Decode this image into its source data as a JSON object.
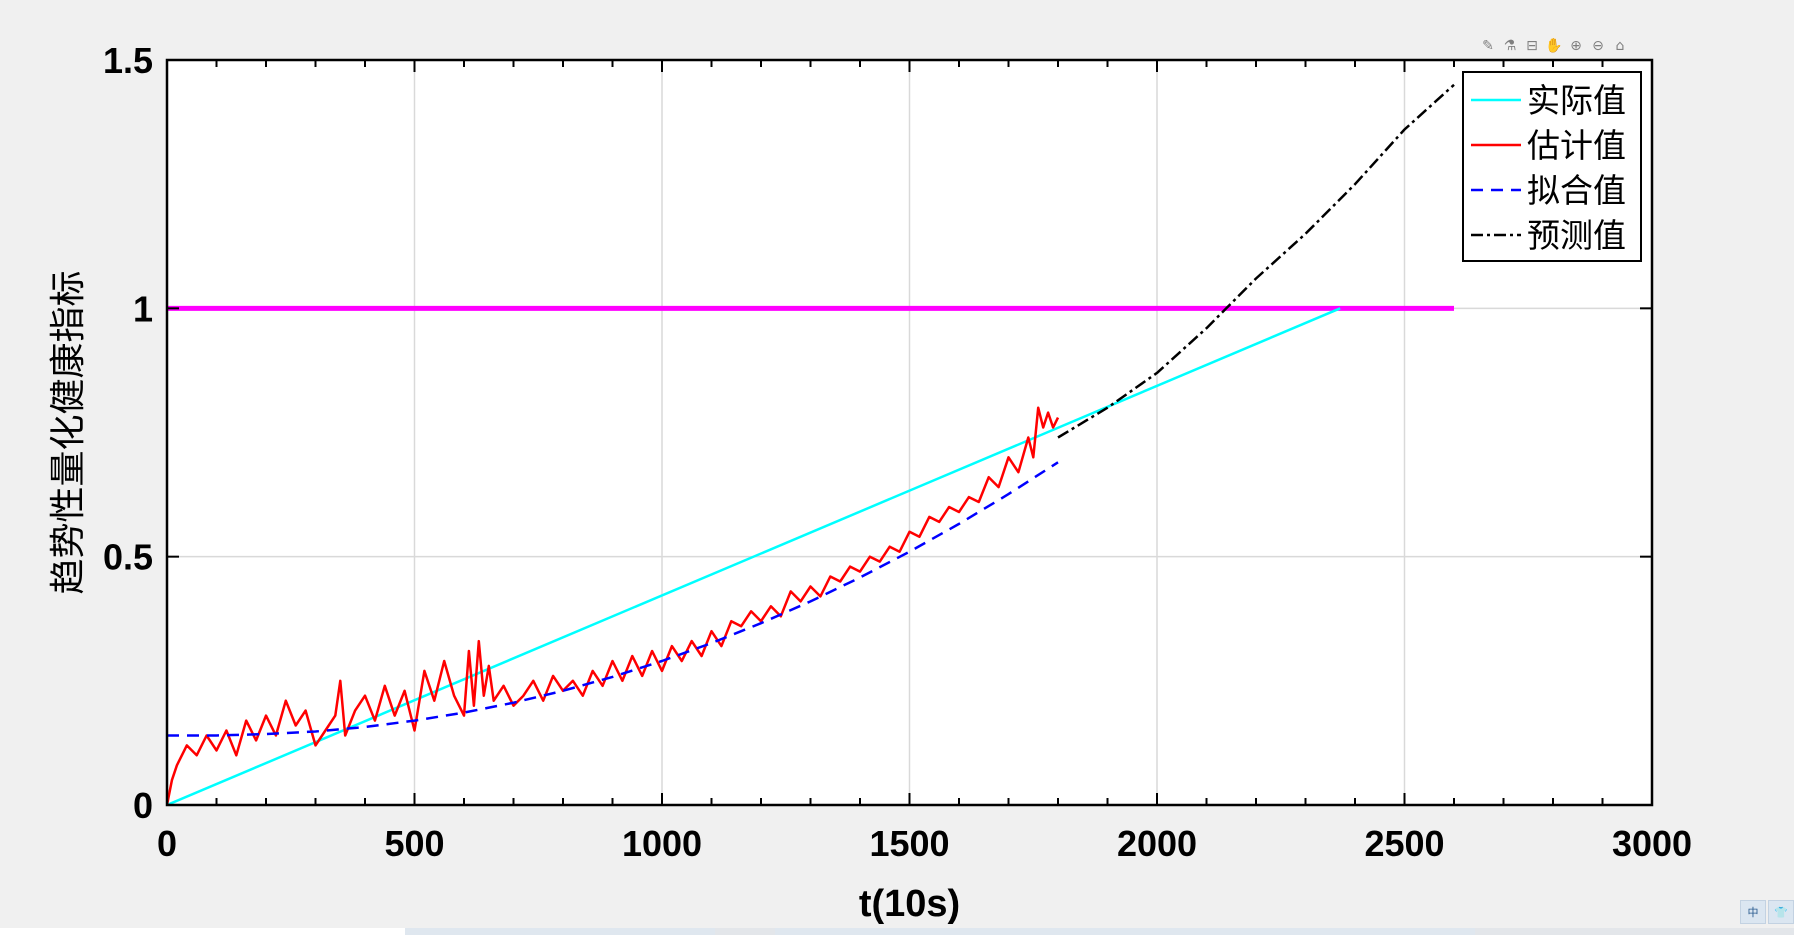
{
  "toolbar": {
    "icons": [
      "brush-icon",
      "data-tip-icon",
      "data-cursor-icon",
      "pan-icon",
      "zoom-in-icon",
      "zoom-out-icon",
      "home-icon"
    ],
    "glyphs": [
      "✎",
      "⚗",
      "⊟",
      "✋",
      "⊕",
      "⊖",
      "⌂"
    ]
  },
  "ime": {
    "label": "中",
    "icon": "shirt-icon",
    "glyph": "👕"
  },
  "colors": {
    "actual": "#00ffff",
    "estimate": "#ff0000",
    "fit": "#0000ff",
    "predict": "#000000",
    "threshold": "#ff00ff",
    "grid": "#d9d9d9"
  },
  "chart_data": {
    "type": "line",
    "title": "",
    "xlabel": "t(10s)",
    "ylabel": "趋势性量化健康指标",
    "xlim": [
      0,
      3000
    ],
    "ylim": [
      0,
      1.5
    ],
    "xticks": [
      0,
      500,
      1000,
      1500,
      2000,
      2500,
      3000
    ],
    "xticklabels": [
      "0",
      "500",
      "1000",
      "1500",
      "2000",
      "2500",
      "3000"
    ],
    "yticks": [
      0,
      0.5,
      1,
      1.5
    ],
    "yticklabels": [
      "0",
      "0.5",
      "1",
      "1.5"
    ],
    "grid": true,
    "legend_position": "top-right",
    "threshold": {
      "y": 1.0,
      "x": [
        0,
        2600
      ]
    },
    "series": [
      {
        "name": "实际值",
        "style": "solid",
        "x": [
          0,
          2370
        ],
        "y": [
          0,
          1.0
        ]
      },
      {
        "name": "估计值",
        "style": "solid",
        "x": [
          0,
          10,
          20,
          40,
          60,
          80,
          100,
          120,
          140,
          160,
          180,
          200,
          220,
          240,
          260,
          280,
          300,
          320,
          340,
          350,
          360,
          380,
          400,
          420,
          440,
          460,
          480,
          500,
          520,
          540,
          560,
          580,
          600,
          610,
          620,
          630,
          640,
          650,
          660,
          680,
          700,
          720,
          740,
          760,
          780,
          800,
          820,
          840,
          860,
          880,
          900,
          920,
          940,
          960,
          980,
          1000,
          1020,
          1040,
          1060,
          1080,
          1100,
          1120,
          1140,
          1160,
          1180,
          1200,
          1220,
          1240,
          1260,
          1280,
          1300,
          1320,
          1340,
          1360,
          1380,
          1400,
          1420,
          1440,
          1460,
          1480,
          1500,
          1520,
          1540,
          1560,
          1580,
          1600,
          1620,
          1640,
          1660,
          1680,
          1700,
          1720,
          1740,
          1750,
          1760,
          1770,
          1780,
          1790,
          1800
        ],
        "y": [
          0.0,
          0.05,
          0.08,
          0.12,
          0.1,
          0.14,
          0.11,
          0.15,
          0.1,
          0.17,
          0.13,
          0.18,
          0.14,
          0.21,
          0.16,
          0.19,
          0.12,
          0.15,
          0.18,
          0.25,
          0.14,
          0.19,
          0.22,
          0.17,
          0.24,
          0.18,
          0.23,
          0.15,
          0.27,
          0.21,
          0.29,
          0.22,
          0.18,
          0.31,
          0.2,
          0.33,
          0.22,
          0.28,
          0.21,
          0.24,
          0.2,
          0.22,
          0.25,
          0.21,
          0.26,
          0.23,
          0.25,
          0.22,
          0.27,
          0.24,
          0.29,
          0.25,
          0.3,
          0.26,
          0.31,
          0.27,
          0.32,
          0.29,
          0.33,
          0.3,
          0.35,
          0.32,
          0.37,
          0.36,
          0.39,
          0.37,
          0.4,
          0.38,
          0.43,
          0.41,
          0.44,
          0.42,
          0.46,
          0.45,
          0.48,
          0.47,
          0.5,
          0.49,
          0.52,
          0.51,
          0.55,
          0.54,
          0.58,
          0.57,
          0.6,
          0.59,
          0.62,
          0.61,
          0.66,
          0.64,
          0.7,
          0.67,
          0.74,
          0.7,
          0.8,
          0.76,
          0.79,
          0.76,
          0.78
        ]
      },
      {
        "name": "拟合值",
        "style": "dashed",
        "x": [
          0,
          100,
          200,
          300,
          400,
          500,
          600,
          700,
          800,
          900,
          1000,
          1100,
          1200,
          1300,
          1400,
          1500,
          1600,
          1700,
          1800
        ],
        "y": [
          0.14,
          0.14,
          0.143,
          0.148,
          0.157,
          0.17,
          0.186,
          0.206,
          0.23,
          0.258,
          0.29,
          0.326,
          0.366,
          0.41,
          0.458,
          0.51,
          0.566,
          0.626,
          0.69
        ]
      },
      {
        "name": "预测值",
        "style": "dashdot",
        "x": [
          1800,
          1900,
          2000,
          2100,
          2140,
          2200,
          2300,
          2400,
          2500,
          2600
        ],
        "y": [
          0.74,
          0.8,
          0.87,
          0.96,
          1.0,
          1.06,
          1.15,
          1.25,
          1.36,
          1.45
        ]
      }
    ]
  }
}
